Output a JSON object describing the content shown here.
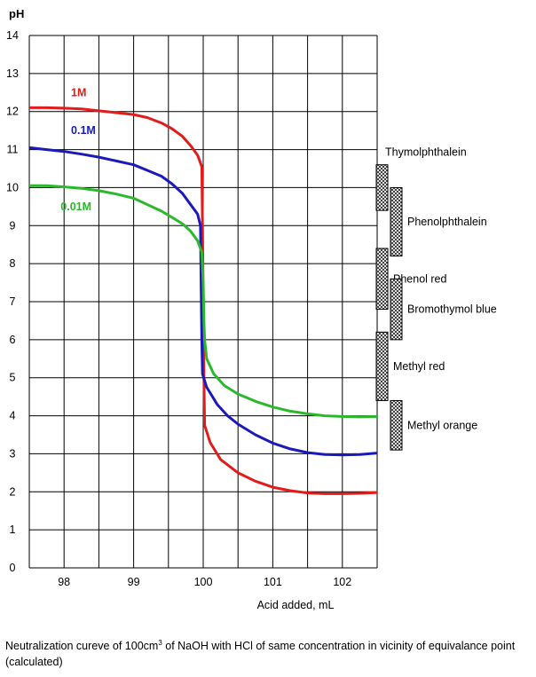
{
  "chart_data": {
    "type": "line",
    "title": "",
    "ylabel": "pH",
    "xlabel": "Acid added, mL",
    "xlim": [
      97.5,
      102.5
    ],
    "ylim": [
      0,
      14
    ],
    "xticks": [
      98,
      99,
      100,
      101,
      102
    ],
    "yticks": [
      0,
      1,
      2,
      3,
      4,
      5,
      6,
      7,
      8,
      9,
      10,
      11,
      12,
      13,
      14
    ],
    "grid": true,
    "series": [
      {
        "name": "1M",
        "color": "#e31b1b",
        "label_at": [
          98.1,
          12.5
        ],
        "points": [
          [
            97.5,
            12.1
          ],
          [
            97.75,
            12.1
          ],
          [
            98.0,
            12.09
          ],
          [
            98.25,
            12.07
          ],
          [
            98.5,
            12.02
          ],
          [
            98.75,
            11.97
          ],
          [
            99.0,
            11.92
          ],
          [
            99.2,
            11.84
          ],
          [
            99.4,
            11.7
          ],
          [
            99.55,
            11.55
          ],
          [
            99.7,
            11.35
          ],
          [
            99.82,
            11.1
          ],
          [
            99.92,
            10.85
          ],
          [
            99.98,
            10.55
          ],
          [
            99.99,
            9.0
          ],
          [
            100.0,
            7.0
          ],
          [
            100.01,
            5.0
          ],
          [
            100.02,
            3.75
          ],
          [
            100.1,
            3.3
          ],
          [
            100.25,
            2.85
          ],
          [
            100.5,
            2.5
          ],
          [
            100.75,
            2.28
          ],
          [
            101.0,
            2.12
          ],
          [
            101.25,
            2.03
          ],
          [
            101.5,
            1.97
          ],
          [
            101.75,
            1.95
          ],
          [
            102.0,
            1.95
          ],
          [
            102.25,
            1.96
          ],
          [
            102.5,
            1.98
          ]
        ]
      },
      {
        "name": "0.1M",
        "color": "#1a1aba",
        "label_at": [
          98.1,
          11.5
        ],
        "points": [
          [
            97.5,
            11.05
          ],
          [
            97.75,
            11.0
          ],
          [
            98.0,
            10.95
          ],
          [
            98.25,
            10.88
          ],
          [
            98.5,
            10.8
          ],
          [
            98.75,
            10.7
          ],
          [
            99.0,
            10.6
          ],
          [
            99.2,
            10.45
          ],
          [
            99.4,
            10.3
          ],
          [
            99.55,
            10.1
          ],
          [
            99.7,
            9.85
          ],
          [
            99.82,
            9.55
          ],
          [
            99.92,
            9.3
          ],
          [
            99.96,
            9.0
          ],
          [
            99.97,
            7.5
          ],
          [
            99.98,
            6.0
          ],
          [
            99.99,
            5.1
          ],
          [
            100.05,
            4.75
          ],
          [
            100.2,
            4.3
          ],
          [
            100.35,
            4.0
          ],
          [
            100.5,
            3.78
          ],
          [
            100.75,
            3.5
          ],
          [
            101.0,
            3.28
          ],
          [
            101.25,
            3.13
          ],
          [
            101.5,
            3.03
          ],
          [
            101.75,
            2.98
          ],
          [
            102.0,
            2.97
          ],
          [
            102.25,
            2.98
          ],
          [
            102.5,
            3.02
          ]
        ]
      },
      {
        "name": "0.01M",
        "color": "#2cb82c",
        "label_at": [
          97.95,
          9.5
        ],
        "points": [
          [
            97.5,
            10.05
          ],
          [
            97.75,
            10.05
          ],
          [
            98.0,
            10.02
          ],
          [
            98.25,
            9.98
          ],
          [
            98.5,
            9.92
          ],
          [
            98.75,
            9.83
          ],
          [
            99.0,
            9.72
          ],
          [
            99.2,
            9.55
          ],
          [
            99.4,
            9.38
          ],
          [
            99.55,
            9.22
          ],
          [
            99.7,
            9.05
          ],
          [
            99.82,
            8.85
          ],
          [
            99.92,
            8.6
          ],
          [
            99.98,
            8.3
          ],
          [
            100.0,
            7.5
          ],
          [
            100.01,
            6.5
          ],
          [
            100.02,
            6.0
          ],
          [
            100.05,
            5.5
          ],
          [
            100.15,
            5.1
          ],
          [
            100.3,
            4.8
          ],
          [
            100.5,
            4.57
          ],
          [
            100.75,
            4.38
          ],
          [
            101.0,
            4.23
          ],
          [
            101.25,
            4.12
          ],
          [
            101.5,
            4.05
          ],
          [
            101.75,
            4.0
          ],
          [
            102.0,
            3.98
          ],
          [
            102.25,
            3.97
          ],
          [
            102.5,
            3.98
          ]
        ]
      }
    ],
    "indicators": [
      {
        "name": "Thymolphthalein",
        "range": [
          9.4,
          10.6
        ],
        "col": 0,
        "label_pos": "above"
      },
      {
        "name": "Phenolphthalein",
        "range": [
          8.2,
          10.0
        ],
        "col": 1,
        "label_pos": "right"
      },
      {
        "name": "Phenol red",
        "range": [
          6.8,
          8.4
        ],
        "col": 0,
        "label_pos": "right"
      },
      {
        "name": "Bromothymol blue",
        "range": [
          6.0,
          7.6
        ],
        "col": 1,
        "label_pos": "right"
      },
      {
        "name": "Methyl red",
        "range": [
          4.4,
          6.2
        ],
        "col": 0,
        "label_pos": "right"
      },
      {
        "name": "Methyl orange",
        "range": [
          3.1,
          4.4
        ],
        "col": 1,
        "label_pos": "right"
      }
    ]
  },
  "caption": {
    "pre": "Neutralization cureve of 100cm",
    "sup": "3",
    "post": " of NaOH with HCl of same concentration in vicinity of equivalance point (calculated)"
  }
}
